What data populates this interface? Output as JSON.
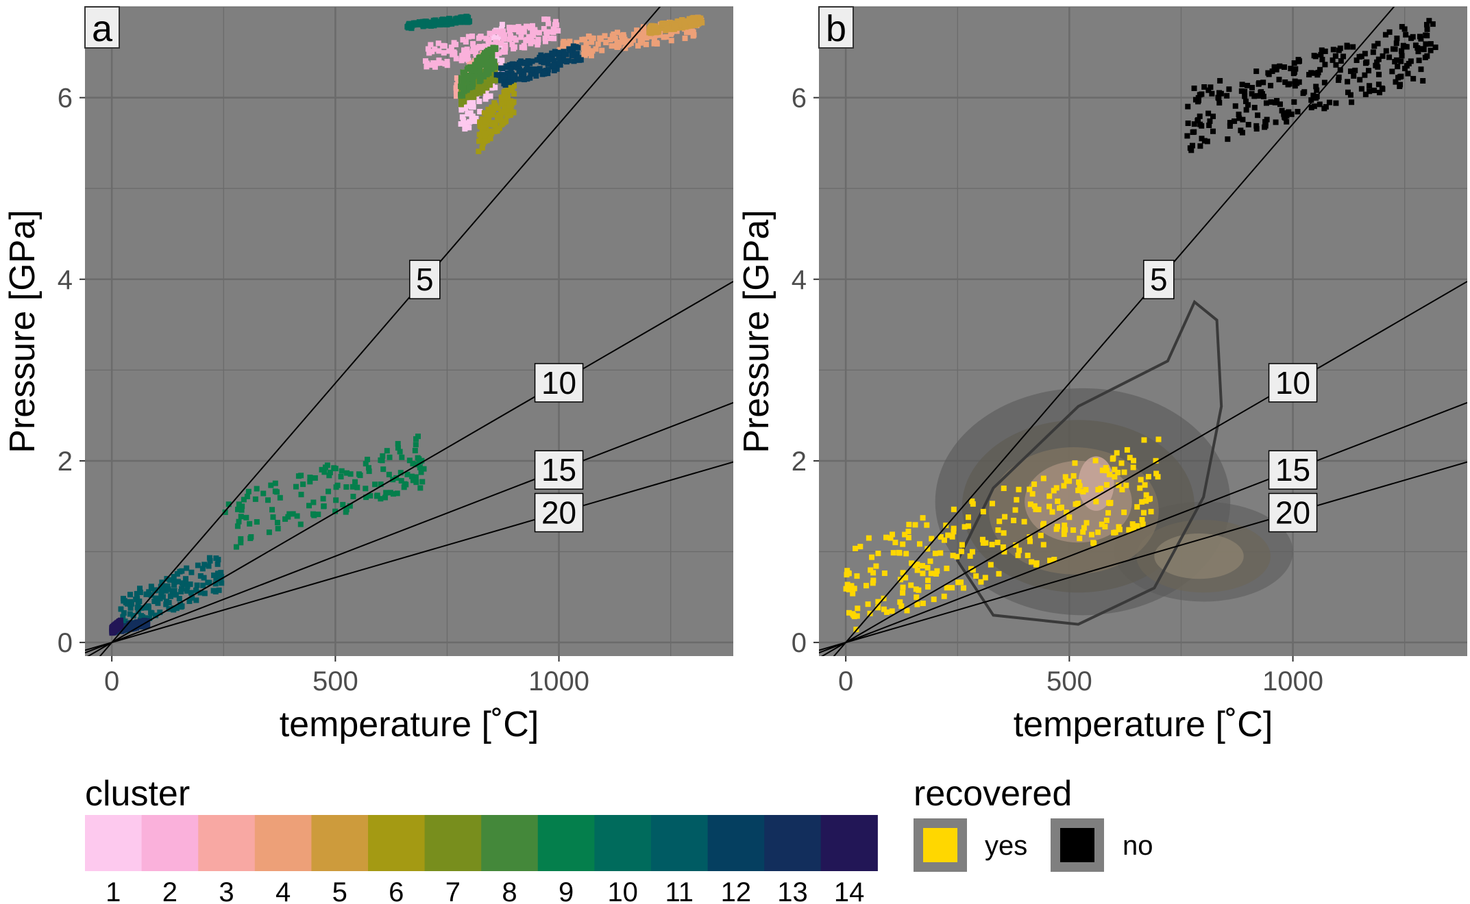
{
  "chart_data": [
    {
      "type": "scatter",
      "panel_tag": "a",
      "xlabel": "temperature [˚C]",
      "ylabel": "Pressure [GPa]",
      "xlim": [
        -60,
        1390
      ],
      "ylim": [
        -0.15,
        7.0
      ],
      "xticks": [
        0,
        500,
        1000
      ],
      "yticks": [
        0,
        2,
        4,
        6
      ],
      "grid": true,
      "background": "#7f7f7f",
      "color_by": "cluster",
      "reference_lines": [
        {
          "label": "5",
          "slope_gpa_per_degc": 0.00571,
          "label_x": 700
        },
        {
          "label": "10",
          "slope_gpa_per_degc": 0.00286,
          "label_x": 1000
        },
        {
          "label": "15",
          "slope_gpa_per_degc": 0.0019,
          "label_x": 1000
        },
        {
          "label": "20",
          "slope_gpa_per_degc": 0.00143,
          "label_x": 1000
        }
      ],
      "clusters": [
        {
          "cluster": 1,
          "T_range": [
            780,
            880
          ],
          "P_range": [
            5.5,
            6.9
          ]
        },
        {
          "cluster": 2,
          "T_range": [
            700,
            1000
          ],
          "P_range": [
            6.3,
            6.9
          ]
        },
        {
          "cluster": 3,
          "T_range": [
            770,
            830
          ],
          "P_range": [
            6.0,
            6.5
          ]
        },
        {
          "cluster": 4,
          "T_range": [
            1000,
            1320
          ],
          "P_range": [
            6.4,
            6.9
          ]
        },
        {
          "cluster": 5,
          "T_range": [
            1200,
            1320
          ],
          "P_range": [
            6.7,
            6.9
          ]
        },
        {
          "cluster": 6,
          "T_range": [
            820,
            900
          ],
          "P_range": [
            5.4,
            6.2
          ]
        },
        {
          "cluster": 7,
          "T_range": [
            780,
            860
          ],
          "P_range": [
            5.9,
            6.4
          ]
        },
        {
          "cluster": 8,
          "T_range": [
            780,
            860
          ],
          "P_range": [
            6.0,
            6.6
          ]
        },
        {
          "cluster": 9,
          "T_range": [
            250,
            700
          ],
          "P_range": [
            1.0,
            2.3
          ]
        },
        {
          "cluster": 10,
          "T_range": [
            660,
            800
          ],
          "P_range": [
            6.75,
            6.9
          ]
        },
        {
          "cluster": 11,
          "T_range": [
            20,
            250
          ],
          "P_range": [
            0.1,
            1.0
          ]
        },
        {
          "cluster": 12,
          "T_range": [
            860,
            1050
          ],
          "P_range": [
            6.1,
            6.6
          ]
        },
        {
          "cluster": 13,
          "T_range": [
            0,
            80
          ],
          "P_range": [
            0.1,
            0.25
          ]
        },
        {
          "cluster": 14,
          "T_range": [
            0,
            20
          ],
          "P_range": [
            0.1,
            0.25
          ]
        }
      ]
    },
    {
      "type": "scatter",
      "panel_tag": "b",
      "xlabel": "temperature [˚C]",
      "ylabel": "Pressure [GPa]",
      "xlim": [
        -60,
        1390
      ],
      "ylim": [
        -0.15,
        7.0
      ],
      "xticks": [
        0,
        500,
        1000
      ],
      "yticks": [
        0,
        2,
        4,
        6
      ],
      "grid": true,
      "background": "#7f7f7f",
      "color_by": "recovered",
      "reference_lines": [
        {
          "label": "5",
          "slope_gpa_per_degc": 0.00571,
          "label_x": 700
        },
        {
          "label": "10",
          "slope_gpa_per_degc": 0.00286,
          "label_x": 1000
        },
        {
          "label": "15",
          "slope_gpa_per_degc": 0.0019,
          "label_x": 1000
        },
        {
          "label": "20",
          "slope_gpa_per_degc": 0.00143,
          "label_x": 1000
        }
      ],
      "groups": [
        {
          "recovered": "yes",
          "T_range": [
            0,
            700
          ],
          "P_range": [
            0.1,
            2.3
          ]
        },
        {
          "recovered": "no",
          "T_range": [
            760,
            1320
          ],
          "P_range": [
            5.4,
            6.9
          ]
        }
      ],
      "density_contours": true
    }
  ],
  "legend": {
    "cluster": {
      "title": "cluster",
      "labels": [
        "1",
        "2",
        "3",
        "4",
        "5",
        "6",
        "7",
        "8",
        "9",
        "10",
        "11",
        "12",
        "13",
        "14"
      ],
      "colors": [
        "#fdc9ee",
        "#fab1db",
        "#f8a8a3",
        "#eda078",
        "#cd9b3c",
        "#a49a13",
        "#788e1d",
        "#44883a",
        "#047f4c",
        "#006b5c",
        "#005b63",
        "#053f60",
        "#122e5c",
        "#221656"
      ]
    },
    "recovered": {
      "title": "recovered",
      "labels": [
        "yes",
        "no"
      ],
      "colors": [
        "#ffd700",
        "#000000"
      ]
    }
  }
}
